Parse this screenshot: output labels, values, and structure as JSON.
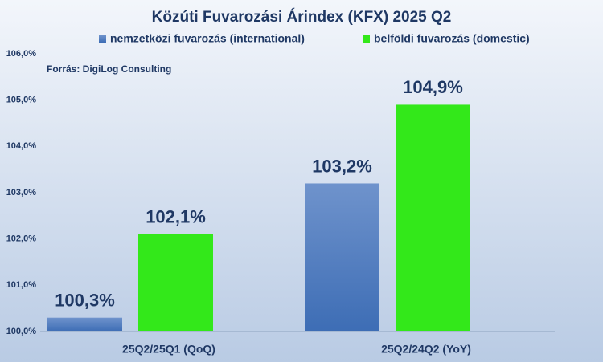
{
  "chart_data": {
    "type": "bar",
    "title": "Közúti Fuvarozási Árindex (KFX) 2025 Q2",
    "annotations": [
      "Forrás: DigiLog Consulting"
    ],
    "categories": [
      "25Q2/25Q1 (QoQ)",
      "25Q2/24Q2 (YoY)"
    ],
    "series": [
      {
        "name": "nemzetközi fuvarozás (international)",
        "color": "#4a7fc4",
        "values": [
          100.3,
          103.2
        ],
        "value_labels": [
          "100,3%",
          "103,2%"
        ]
      },
      {
        "name": "belföldi fuvarozás (domestic)",
        "color": "#33e81a",
        "values": [
          102.1,
          104.9
        ],
        "value_labels": [
          "102,1%",
          "104,9%"
        ]
      }
    ],
    "ylim": [
      100,
      106
    ],
    "yticks": [
      {
        "value": 100,
        "label": "100,0%"
      },
      {
        "value": 101,
        "label": "101,0%"
      },
      {
        "value": 102,
        "label": "102,0%"
      },
      {
        "value": 103,
        "label": "103,0%"
      },
      {
        "value": 104,
        "label": "104,0%"
      },
      {
        "value": 105,
        "label": "105,0%"
      },
      {
        "value": 106,
        "label": "106,0%"
      }
    ],
    "grid": false
  }
}
